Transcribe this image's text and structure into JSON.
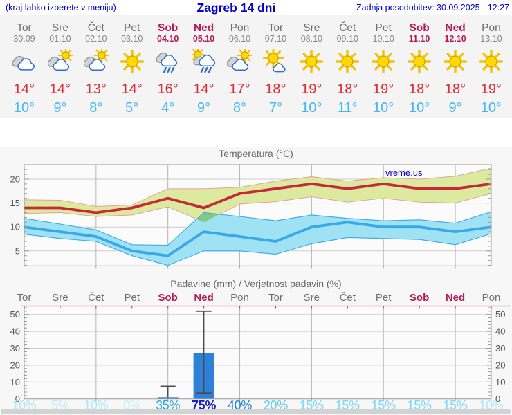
{
  "header": {
    "hint": "(kraj lahko izberete v meniju)",
    "title": "Zagreb 14 dni",
    "updated": "Zadnja posodobitev: 30.09.2025 - 12:27"
  },
  "watermark": "vreme.us",
  "colors": {
    "header_blue": "#0202cf",
    "weekday_gray": "#6e6e6e",
    "date_gray": "#868686",
    "weekend_crimson": "#b51a55",
    "tmax_red": "#e02b33",
    "tmin_blue": "#45b7f2",
    "temp_line_red": "#c62a38",
    "temp_band_yellow": "#dcea9f",
    "temp_band_edge": "#e59a93",
    "temp_line_blue": "#38a8e8",
    "temp_band_blue": "#9fe2f3",
    "overlap_green": "#82ca82",
    "bar_blue": "#2e81d8",
    "whisker_gray": "#4d4d4d",
    "axis_text": "#555555",
    "grid_h": "#cdcdcd",
    "grid_v": "#b5b5b5",
    "frame": "#999999",
    "precip_topline": "#c9406e",
    "title_gray": "#666666"
  },
  "forecast": {
    "days": [
      {
        "name": "Tor",
        "date": "30.09",
        "weekend": false,
        "icon": "cloudy",
        "tmax": "14°",
        "tmin": "10°",
        "prob": "10%",
        "prob_color": "#aee7f8",
        "prob_strong": false
      },
      {
        "name": "Sre",
        "date": "01.10",
        "weekend": false,
        "icon": "sun-cloud",
        "tmax": "14°",
        "tmin": "9°",
        "prob": "5%",
        "prob_color": "#bcebfa",
        "prob_strong": false
      },
      {
        "name": "Čet",
        "date": "02.10",
        "weekend": false,
        "icon": "sun-cloud",
        "tmax": "13°",
        "tmin": "8°",
        "prob": "10%",
        "prob_color": "#aee7f8",
        "prob_strong": false
      },
      {
        "name": "Pet",
        "date": "03.10",
        "weekend": false,
        "icon": "sunny",
        "tmax": "14°",
        "tmin": "5°",
        "prob": "0%",
        "prob_color": "#c3edfa",
        "prob_strong": false
      },
      {
        "name": "Sob",
        "date": "04.10",
        "weekend": true,
        "icon": "rain",
        "tmax": "16°",
        "tmin": "4°",
        "prob": "35%",
        "prob_color": "#31a5e8",
        "prob_strong": false
      },
      {
        "name": "Ned",
        "date": "05.10",
        "weekend": true,
        "icon": "sun-rain",
        "tmax": "14°",
        "tmin": "9°",
        "prob": "75%",
        "prob_color": "#1b20c0",
        "prob_strong": true
      },
      {
        "name": "Pon",
        "date": "06.10",
        "weekend": false,
        "icon": "sun-cloud",
        "tmax": "17°",
        "tmin": "8°",
        "prob": "40%",
        "prob_color": "#1e7edb",
        "prob_strong": false
      },
      {
        "name": "Tor",
        "date": "07.10",
        "weekend": false,
        "icon": "sun-small-cloud",
        "tmax": "18°",
        "tmin": "7°",
        "prob": "20%",
        "prob_color": "#62cef2",
        "prob_strong": false
      },
      {
        "name": "Sre",
        "date": "08.10",
        "weekend": false,
        "icon": "sunny",
        "tmax": "19°",
        "tmin": "10°",
        "prob": "15%",
        "prob_color": "#7ed9f5",
        "prob_strong": false
      },
      {
        "name": "Čet",
        "date": "09.10",
        "weekend": false,
        "icon": "sunny",
        "tmax": "18°",
        "tmin": "11°",
        "prob": "15%",
        "prob_color": "#7ed9f5",
        "prob_strong": false
      },
      {
        "name": "Pet",
        "date": "10.10",
        "weekend": false,
        "icon": "sunny",
        "tmax": "19°",
        "tmin": "10°",
        "prob": "15%",
        "prob_color": "#7ed9f5",
        "prob_strong": false
      },
      {
        "name": "Sob",
        "date": "11.10",
        "weekend": true,
        "icon": "sunny",
        "tmax": "18°",
        "tmin": "10°",
        "prob": "15%",
        "prob_color": "#7ed9f5",
        "prob_strong": false
      },
      {
        "name": "Ned",
        "date": "12.10",
        "weekend": true,
        "icon": "sunny",
        "tmax": "18°",
        "tmin": "9°",
        "prob": "15%",
        "prob_color": "#7ed9f5",
        "prob_strong": false
      },
      {
        "name": "Pon",
        "date": "13.10",
        "weekend": false,
        "icon": "sunny",
        "tmax": "19°",
        "tmin": "10°",
        "prob": "10%",
        "prob_color": "#aee7f8",
        "prob_strong": false
      }
    ]
  },
  "chart_data": [
    {
      "type": "line",
      "title": "Temperatura (°C)",
      "categories": [
        "Tor",
        "Sre",
        "Čet",
        "Pet",
        "Sob",
        "Ned",
        "Pon",
        "Tor",
        "Sre",
        "Čet",
        "Pet",
        "Sob",
        "Ned",
        "Pon"
      ],
      "series": [
        {
          "name": "max temp",
          "color": "#c62a38",
          "values": [
            14,
            14,
            13,
            14,
            16,
            14,
            17,
            18,
            19,
            18,
            19,
            18,
            18,
            19
          ]
        },
        {
          "name": "max range high",
          "values": [
            15.7,
            15.6,
            14.3,
            14.6,
            18,
            18,
            18.3,
            19.6,
            20.5,
            19.6,
            20.3,
            20,
            20.6,
            22.3
          ]
        },
        {
          "name": "max range low",
          "values": [
            12.8,
            13,
            12.2,
            12.5,
            14.2,
            11,
            14.8,
            15.3,
            16.3,
            15.2,
            16,
            15.2,
            15,
            17
          ]
        },
        {
          "name": "min temp",
          "color": "#38a8e8",
          "values": [
            10,
            9,
            8,
            5,
            4,
            9,
            8,
            7,
            10,
            11,
            10,
            10,
            9,
            10
          ]
        },
        {
          "name": "min range high",
          "values": [
            11.8,
            10.6,
            9.4,
            6.3,
            6.2,
            13,
            12.2,
            11.3,
            12.5,
            11.8,
            11.3,
            11.5,
            10.8,
            13.2
          ]
        },
        {
          "name": "min range low",
          "values": [
            8.5,
            7.6,
            7,
            4,
            2,
            5,
            5,
            4.3,
            6.5,
            7.8,
            7.6,
            7.4,
            6.3,
            8.6
          ]
        }
      ],
      "ylim": [
        2,
        23
      ],
      "yticks": [
        5,
        10,
        15,
        20
      ],
      "grid": true,
      "legend": "none"
    },
    {
      "type": "bar",
      "title": "Padavine (mm) / Verjetnost padavin (%)",
      "categories": [
        "Tor",
        "Sre",
        "Čet",
        "Pet",
        "Sob",
        "Ned",
        "Pon",
        "Tor",
        "Sre",
        "Čet",
        "Pet",
        "Sob",
        "Ned",
        "Pon"
      ],
      "values": [
        0,
        0,
        0,
        0,
        1,
        27,
        0,
        0,
        0,
        0,
        0,
        0,
        0,
        0
      ],
      "whisker_low": [
        null,
        null,
        null,
        null,
        0,
        3.5,
        null,
        null,
        null,
        null,
        null,
        null,
        null,
        null
      ],
      "whisker_high": [
        null,
        null,
        null,
        null,
        7.5,
        52,
        null,
        null,
        null,
        null,
        null,
        null,
        null,
        null
      ],
      "probabilities_percent": [
        10,
        5,
        10,
        0,
        35,
        75,
        40,
        20,
        15,
        15,
        15,
        15,
        15,
        10
      ],
      "ylim": [
        0,
        55
      ],
      "yticks": [
        0,
        10,
        20,
        30,
        40,
        50
      ],
      "grid": true,
      "legend": "none"
    }
  ]
}
